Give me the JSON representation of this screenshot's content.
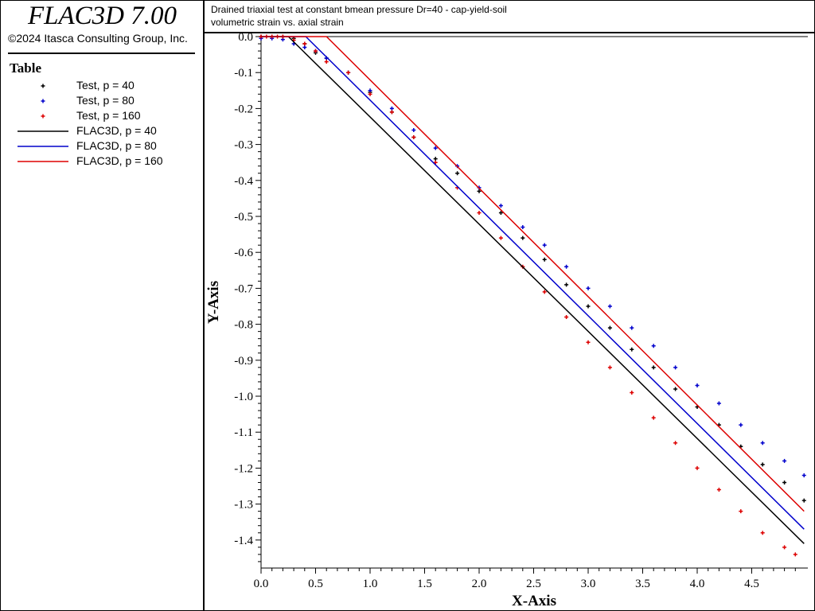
{
  "app": {
    "title": "FLAC3D 7.00",
    "copyright": "©2024 Itasca Consulting Group, Inc."
  },
  "plot_header": {
    "line1": "Drained triaxial test at constant bmean pressure Dr=40 - cap-yield-soil",
    "line2": "volumetric strain vs. axial strain"
  },
  "legend": {
    "title": "Table",
    "items": [
      {
        "label": "Test, p = 40",
        "kind": "marker",
        "color": "#000000"
      },
      {
        "label": "Test, p = 80",
        "kind": "marker",
        "color": "#0000cc"
      },
      {
        "label": "Test, p = 160",
        "kind": "marker",
        "color": "#dd0000"
      },
      {
        "label": "FLAC3D, p = 40",
        "kind": "line",
        "color": "#000000"
      },
      {
        "label": "FLAC3D, p = 80",
        "kind": "line",
        "color": "#0000cc"
      },
      {
        "label": "FLAC3D, p = 160",
        "kind": "line",
        "color": "#dd0000"
      }
    ]
  },
  "chart_data": {
    "type": "scatter",
    "xlabel": "X-Axis",
    "ylabel": "Y-Axis",
    "xlim": [
      0,
      5.0
    ],
    "ylim": [
      -1.47,
      0.0
    ],
    "xticks": [
      "0.0",
      "0.5",
      "1.0",
      "1.5",
      "2.0",
      "2.5",
      "3.0",
      "3.5",
      "4.0",
      "4.5"
    ],
    "yticks": [
      "0.0",
      "-0.1",
      "-0.2",
      "-0.3",
      "-0.4",
      "-0.5",
      "-0.6",
      "-0.7",
      "-0.8",
      "-0.9",
      "-1.0",
      "-1.1",
      "-1.2",
      "-1.3",
      "-1.4"
    ],
    "grid": false,
    "series": [
      {
        "name": "Test, p = 40",
        "kind": "marker",
        "color": "#000000",
        "x": [
          0.0,
          0.1,
          0.2,
          0.3,
          0.4,
          0.5,
          0.6,
          0.8,
          1.0,
          1.2,
          1.4,
          1.6,
          1.8,
          2.0,
          2.2,
          2.4,
          2.6,
          2.8,
          3.0,
          3.2,
          3.4,
          3.6,
          3.8,
          4.0,
          4.2,
          4.4,
          4.6,
          4.8,
          4.98
        ],
        "y": [
          0.0,
          0.0,
          0.0,
          -0.005,
          -0.02,
          -0.045,
          -0.06,
          -0.1,
          -0.155,
          -0.21,
          -0.28,
          -0.34,
          -0.38,
          -0.43,
          -0.49,
          -0.56,
          -0.62,
          -0.69,
          -0.75,
          -0.81,
          -0.87,
          -0.92,
          -0.98,
          -1.03,
          -1.08,
          -1.14,
          -1.19,
          -1.24,
          -1.29
        ]
      },
      {
        "name": "Test, p = 80",
        "kind": "marker",
        "color": "#0000cc",
        "x": [
          0.0,
          0.1,
          0.2,
          0.3,
          0.4,
          0.5,
          0.6,
          0.8,
          1.0,
          1.2,
          1.4,
          1.6,
          1.8,
          2.0,
          2.2,
          2.4,
          2.6,
          2.8,
          3.0,
          3.2,
          3.4,
          3.6,
          3.8,
          4.0,
          4.2,
          4.4,
          4.6,
          4.8,
          4.98
        ],
        "y": [
          -0.005,
          -0.005,
          -0.008,
          -0.02,
          -0.03,
          -0.04,
          -0.06,
          -0.1,
          -0.15,
          -0.2,
          -0.26,
          -0.31,
          -0.36,
          -0.42,
          -0.47,
          -0.53,
          -0.58,
          -0.64,
          -0.7,
          -0.75,
          -0.81,
          -0.86,
          -0.92,
          -0.97,
          -1.02,
          -1.08,
          -1.13,
          -1.18,
          -1.22
        ]
      },
      {
        "name": "Test, p = 160",
        "kind": "marker",
        "color": "#dd0000",
        "x": [
          0.0,
          0.05,
          0.1,
          0.15,
          0.2,
          0.3,
          0.4,
          0.5,
          0.6,
          0.8,
          1.0,
          1.2,
          1.4,
          1.6,
          1.8,
          2.0,
          2.2,
          2.4,
          2.6,
          2.8,
          3.0,
          3.2,
          3.4,
          3.6,
          3.8,
          4.0,
          4.2,
          4.4,
          4.6,
          4.8,
          4.9
        ],
        "y": [
          0.0,
          0.0,
          0.0,
          0.0,
          0.0,
          -0.01,
          -0.02,
          -0.04,
          -0.07,
          -0.1,
          -0.16,
          -0.21,
          -0.28,
          -0.35,
          -0.42,
          -0.49,
          -0.56,
          -0.64,
          -0.71,
          -0.78,
          -0.85,
          -0.92,
          -0.99,
          -1.06,
          -1.13,
          -1.2,
          -1.26,
          -1.32,
          -1.38,
          -1.42,
          -1.44
        ]
      },
      {
        "name": "FLAC3D, p = 40",
        "kind": "line",
        "color": "#000000",
        "x": [
          0.0,
          0.25,
          4.98
        ],
        "y": [
          0.0,
          0.0,
          -1.41
        ]
      },
      {
        "name": "FLAC3D, p = 80",
        "kind": "line",
        "color": "#0000cc",
        "x": [
          0.0,
          0.41,
          4.98
        ],
        "y": [
          0.0,
          0.0,
          -1.37
        ]
      },
      {
        "name": "FLAC3D, p = 160",
        "kind": "line",
        "color": "#dd0000",
        "x": [
          0.0,
          0.6,
          4.98
        ],
        "y": [
          0.0,
          0.0,
          -1.32
        ]
      }
    ]
  }
}
